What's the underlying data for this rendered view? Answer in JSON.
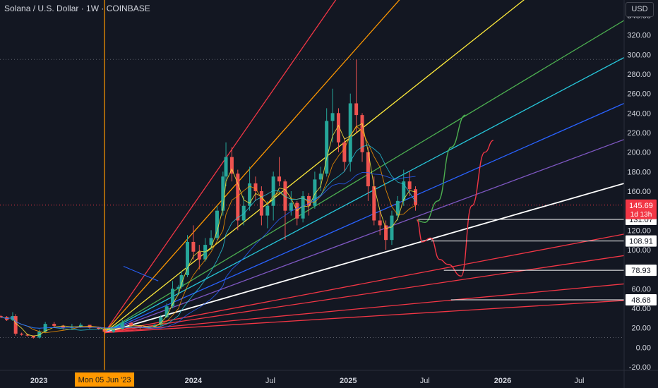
{
  "header": {
    "title": "Solana / U.S. Dollar · 1W · COINBASE",
    "currency_button": "USD"
  },
  "colors": {
    "background": "#131722",
    "up": "#26a69a",
    "down": "#ef5350",
    "marker": "#ff9800",
    "price_badge": "#f23645"
  },
  "chart_data": {
    "type": "candlestick",
    "title": "Solana / U.S. Dollar · 1W · COINBASE",
    "y_ticks": [
      340,
      320,
      300,
      280,
      260,
      240,
      220,
      200,
      180,
      160,
      140,
      120,
      100,
      80,
      60,
      40,
      20,
      0,
      -20
    ],
    "y_range": [
      -20,
      340
    ],
    "x_ticks": [
      "2023",
      "Jul",
      "2024",
      "Jul",
      "2025",
      "Jul",
      "2026",
      "Jul"
    ],
    "x_range": [
      "2022-10-01",
      "2026-10-15"
    ],
    "current_price": {
      "value": "145.69",
      "countdown": "1d 13h"
    },
    "levels": [
      {
        "label": "131.07",
        "value": 131.07,
        "from": "2025-06-15"
      },
      {
        "label": "108.91",
        "value": 108.91,
        "from": "2025-07-15"
      },
      {
        "label": "78.93",
        "value": 78.93,
        "from": "2025-08-15"
      },
      {
        "label": "48.68",
        "value": 48.68,
        "from": "2025-09-01"
      }
    ],
    "vertical_marker": {
      "date": "2023-06-05",
      "label": "Mon 05 Jun '23"
    },
    "dotted_levels": [
      295,
      10
    ],
    "price_line": 145.69,
    "fan_origin": {
      "date": "2023-06-05",
      "value": 15
    },
    "fan_lines": [
      {
        "color": "#f23645",
        "end_date": "2025-01-10",
        "end_value": 380
      },
      {
        "color": "#ff9800",
        "end_date": "2025-06-20",
        "end_value": 380
      },
      {
        "color": "#ffeb3b",
        "end_date": "2026-05-01",
        "end_value": 380
      },
      {
        "color": "#4caf50",
        "end_date": "2026-10-15",
        "end_value": 335
      },
      {
        "color": "#26c6da",
        "end_date": "2026-10-15",
        "end_value": 297
      },
      {
        "color": "#2962ff",
        "end_date": "2026-10-15",
        "end_value": 250
      },
      {
        "color": "#7e57c2",
        "end_date": "2026-10-15",
        "end_value": 213
      },
      {
        "color": "#ffffff",
        "end_date": "2026-10-15",
        "end_value": 168
      },
      {
        "color": "#f23645",
        "end_date": "2026-10-15",
        "end_value": 116
      },
      {
        "color": "#f23645",
        "end_date": "2026-10-15",
        "end_value": 94
      },
      {
        "color": "#f23645",
        "end_date": "2026-10-15",
        "end_value": 65
      },
      {
        "color": "#f23645",
        "end_date": "2026-10-15",
        "end_value": 48
      }
    ],
    "projections": [
      {
        "color": "#4caf50",
        "points": [
          [
            "2025-06-12",
            130
          ],
          [
            "2025-07-01",
            128
          ],
          [
            "2025-08-01",
            150
          ],
          [
            "2025-09-01",
            205
          ],
          [
            "2025-10-05",
            238
          ]
        ]
      },
      {
        "color": "#f23645",
        "points": [
          [
            "2025-06-12",
            131
          ],
          [
            "2025-06-25",
            108
          ],
          [
            "2025-07-15",
            112
          ],
          [
            "2025-08-05",
            90
          ],
          [
            "2025-08-25",
            85
          ],
          [
            "2025-09-25",
            73
          ],
          [
            "2025-10-20",
            145
          ],
          [
            "2025-11-20",
            200
          ],
          [
            "2025-12-10",
            212
          ]
        ]
      }
    ],
    "candles": [
      [
        "2022-10-03",
        32,
        33,
        30,
        31
      ],
      [
        "2022-10-17",
        31,
        32,
        27,
        28
      ],
      [
        "2022-10-31",
        28,
        36,
        27,
        32
      ],
      [
        "2022-11-07",
        32,
        34,
        12,
        14
      ],
      [
        "2022-11-21",
        14,
        15,
        12,
        13
      ],
      [
        "2022-12-05",
        13,
        14,
        11,
        12
      ],
      [
        "2022-12-19",
        12,
        12,
        9,
        10
      ],
      [
        "2023-01-02",
        10,
        18,
        9,
        16
      ],
      [
        "2023-01-16",
        16,
        26,
        15,
        24
      ],
      [
        "2023-02-06",
        24,
        26,
        20,
        22
      ],
      [
        "2023-02-27",
        22,
        23,
        18,
        20
      ],
      [
        "2023-03-20",
        20,
        24,
        18,
        21
      ],
      [
        "2023-04-10",
        21,
        25,
        20,
        23
      ],
      [
        "2023-05-01",
        23,
        23,
        19,
        20
      ],
      [
        "2023-05-22",
        20,
        21,
        18,
        19
      ],
      [
        "2023-06-05",
        19,
        20,
        15,
        16
      ],
      [
        "2023-06-26",
        16,
        20,
        15,
        19
      ],
      [
        "2023-07-17",
        19,
        28,
        18,
        25
      ],
      [
        "2023-08-07",
        25,
        26,
        20,
        22
      ],
      [
        "2023-08-28",
        22,
        22,
        18,
        20
      ],
      [
        "2023-09-18",
        20,
        22,
        19,
        21
      ],
      [
        "2023-10-02",
        21,
        24,
        20,
        23
      ],
      [
        "2023-10-16",
        23,
        33,
        22,
        31
      ],
      [
        "2023-10-30",
        31,
        45,
        30,
        42
      ],
      [
        "2023-11-13",
        42,
        68,
        40,
        60
      ],
      [
        "2023-11-27",
        60,
        64,
        55,
        62
      ],
      [
        "2023-12-04",
        62,
        78,
        60,
        74
      ],
      [
        "2023-12-18",
        74,
        115,
        72,
        108
      ],
      [
        "2024-01-01",
        108,
        125,
        90,
        98
      ],
      [
        "2024-01-15",
        98,
        105,
        80,
        90
      ],
      [
        "2024-01-29",
        90,
        112,
        88,
        105
      ],
      [
        "2024-02-12",
        105,
        120,
        100,
        112
      ],
      [
        "2024-02-26",
        112,
        145,
        110,
        140
      ],
      [
        "2024-03-11",
        140,
        180,
        135,
        175
      ],
      [
        "2024-03-18",
        175,
        210,
        165,
        195
      ],
      [
        "2024-04-01",
        195,
        205,
        170,
        178
      ],
      [
        "2024-04-15",
        178,
        182,
        120,
        130
      ],
      [
        "2024-04-29",
        130,
        155,
        125,
        145
      ],
      [
        "2024-05-13",
        145,
        185,
        140,
        168
      ],
      [
        "2024-05-27",
        168,
        175,
        150,
        160
      ],
      [
        "2024-06-10",
        160,
        165,
        125,
        135
      ],
      [
        "2024-06-24",
        135,
        150,
        122,
        145
      ],
      [
        "2024-07-08",
        145,
        180,
        130,
        175
      ],
      [
        "2024-07-22",
        175,
        195,
        165,
        170
      ],
      [
        "2024-08-05",
        170,
        172,
        110,
        140
      ],
      [
        "2024-08-19",
        140,
        160,
        135,
        148
      ],
      [
        "2024-09-02",
        148,
        150,
        125,
        132
      ],
      [
        "2024-09-16",
        132,
        160,
        128,
        155
      ],
      [
        "2024-09-30",
        155,
        158,
        135,
        145
      ],
      [
        "2024-10-14",
        145,
        180,
        142,
        172
      ],
      [
        "2024-10-28",
        172,
        185,
        160,
        178
      ],
      [
        "2024-11-11",
        178,
        245,
        175,
        232
      ],
      [
        "2024-11-25",
        232,
        265,
        210,
        240
      ],
      [
        "2024-12-09",
        240,
        245,
        200,
        210
      ],
      [
        "2024-12-23",
        210,
        215,
        180,
        190
      ],
      [
        "2025-01-06",
        190,
        260,
        180,
        250
      ],
      [
        "2025-01-20",
        250,
        295,
        220,
        238
      ],
      [
        "2025-02-03",
        238,
        240,
        190,
        200
      ],
      [
        "2025-02-17",
        200,
        205,
        150,
        165
      ],
      [
        "2025-03-03",
        165,
        175,
        125,
        130
      ],
      [
        "2025-03-17",
        130,
        140,
        115,
        125
      ],
      [
        "2025-03-31",
        125,
        130,
        100,
        110
      ],
      [
        "2025-04-14",
        110,
        140,
        105,
        135
      ],
      [
        "2025-04-28",
        135,
        155,
        130,
        150
      ],
      [
        "2025-05-12",
        150,
        182,
        145,
        170
      ],
      [
        "2025-05-26",
        170,
        180,
        155,
        162
      ],
      [
        "2025-06-09",
        162,
        165,
        140,
        145.69
      ]
    ]
  }
}
